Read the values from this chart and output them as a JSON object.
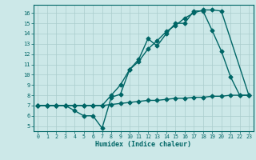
{
  "xlabel": "Humidex (Indice chaleur)",
  "bg_color": "#cce8e8",
  "grid_color": "#aacccc",
  "line_color": "#006666",
  "xlim": [
    -0.5,
    23.5
  ],
  "ylim": [
    4.5,
    16.8
  ],
  "xticks": [
    0,
    1,
    2,
    3,
    4,
    5,
    6,
    7,
    8,
    9,
    10,
    11,
    12,
    13,
    14,
    15,
    16,
    17,
    18,
    19,
    20,
    21,
    22,
    23
  ],
  "yticks": [
    5,
    6,
    7,
    8,
    9,
    10,
    11,
    12,
    13,
    14,
    15,
    16
  ],
  "line1_x": [
    0,
    1,
    2,
    3,
    4,
    5,
    6,
    7,
    8,
    9,
    10,
    11,
    12,
    13,
    14,
    15,
    16,
    17,
    18,
    19,
    20,
    21,
    22,
    23
  ],
  "line1_y": [
    7.0,
    7.0,
    7.0,
    7.0,
    6.5,
    6.0,
    6.0,
    4.8,
    7.8,
    8.1,
    10.5,
    11.5,
    13.5,
    12.8,
    14.0,
    15.0,
    15.0,
    16.2,
    16.2,
    14.3,
    12.3,
    9.8,
    8.0,
    8.0
  ],
  "line2_x": [
    0,
    1,
    2,
    3,
    4,
    5,
    6,
    7,
    8,
    9,
    10,
    11,
    12,
    13,
    14,
    15,
    16,
    17,
    18,
    19,
    20,
    23
  ],
  "line2_y": [
    7.0,
    7.0,
    7.0,
    7.0,
    7.0,
    7.0,
    7.0,
    7.0,
    8.0,
    9.0,
    10.5,
    11.3,
    12.5,
    13.3,
    14.2,
    14.8,
    15.5,
    16.0,
    16.3,
    16.3,
    16.2,
    8.0
  ],
  "line3_x": [
    0,
    1,
    2,
    3,
    4,
    5,
    6,
    7,
    8,
    9,
    10,
    11,
    12,
    13,
    14,
    15,
    16,
    17,
    18,
    19,
    20,
    21,
    22,
    23
  ],
  "line3_y": [
    7.0,
    7.0,
    7.0,
    7.0,
    7.0,
    7.0,
    7.0,
    7.0,
    7.1,
    7.2,
    7.3,
    7.4,
    7.5,
    7.5,
    7.6,
    7.7,
    7.7,
    7.8,
    7.8,
    7.9,
    7.9,
    8.0,
    8.0,
    8.0
  ],
  "marker": "D",
  "markersize": 2.5,
  "linewidth": 1.0
}
